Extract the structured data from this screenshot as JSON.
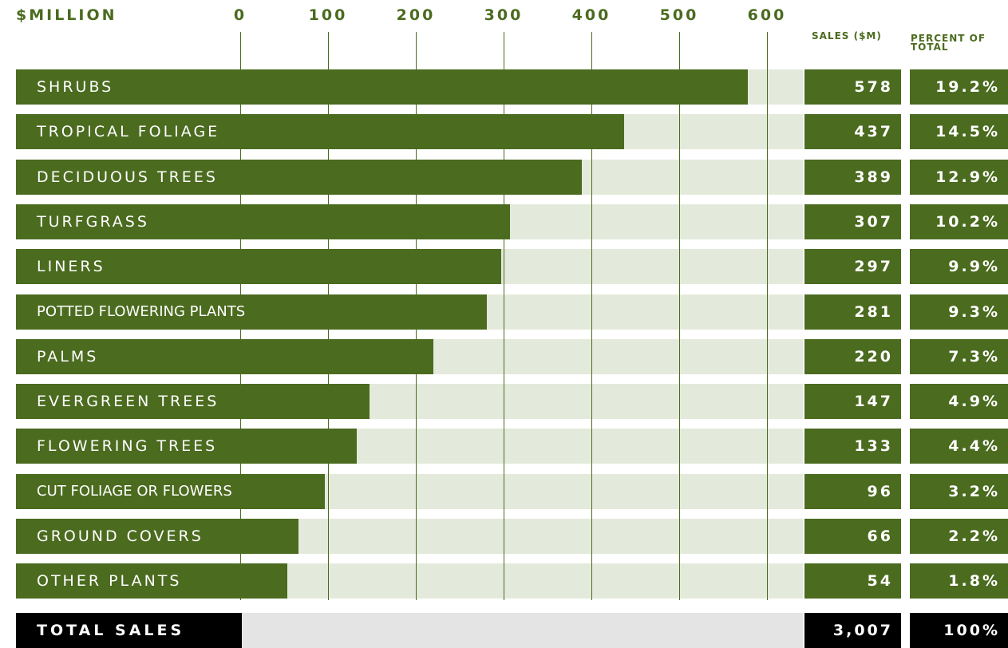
{
  "chart_data": {
    "type": "bar",
    "orientation": "horizontal",
    "axis_title": "$MILLION",
    "x_ticks": [
      "0",
      "100",
      "200",
      "300",
      "400",
      "500",
      "600"
    ],
    "xlim": [
      0,
      640
    ],
    "grid": true,
    "columns": {
      "sales_header": "SALES ($M)",
      "percent_header_line1": "PERCENT OF",
      "percent_header_line2": "TOTAL"
    },
    "categories": [
      "SHRUBS",
      "TROPICAL FOLIAGE",
      "DECIDUOUS TREES",
      "TURFGRASS",
      "LINERS",
      "POTTED FLOWERING PLANTS",
      "PALMS",
      "EVERGREEN TREES",
      "FLOWERING TREES",
      "CUT FOLIAGE OR FLOWERS",
      "GROUND COVERS",
      "OTHER PLANTS"
    ],
    "values": [
      578,
      437,
      389,
      307,
      297,
      281,
      220,
      147,
      133,
      96,
      66,
      54
    ],
    "value_labels": [
      "578",
      "437",
      "389",
      "307",
      "297",
      "281",
      "220",
      "147",
      "133",
      "96",
      "66",
      "54"
    ],
    "percents": [
      "19.2%",
      "14.5%",
      "12.9%",
      "10.2%",
      "9.9%",
      "9.3%",
      "7.3%",
      "4.9%",
      "4.4%",
      "3.2%",
      "2.2%",
      "1.8%"
    ],
    "total": {
      "label": "TOTAL SALES",
      "value": "3,007",
      "percent": "100%"
    },
    "colors": {
      "bar": "#4b6b1f",
      "track": "#e4eadb",
      "total_bg": "#000000",
      "total_track": "#e4e4e4"
    }
  }
}
